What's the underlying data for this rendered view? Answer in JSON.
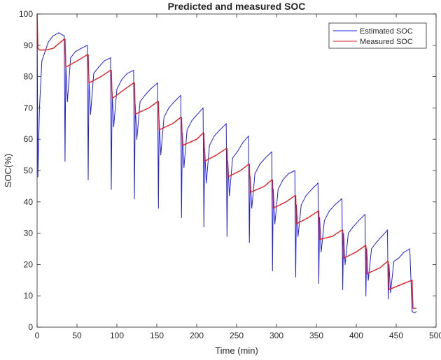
{
  "chart_data": {
    "type": "line",
    "title": "Predicted and measured SOC",
    "xlabel": "Time (min)",
    "ylabel": "SOC(%)",
    "xlim": [
      0,
      500
    ],
    "ylim": [
      0,
      100
    ],
    "xticks": [
      0,
      50,
      100,
      150,
      200,
      250,
      300,
      350,
      400,
      450,
      500
    ],
    "yticks": [
      0,
      10,
      20,
      30,
      40,
      50,
      60,
      70,
      80,
      90,
      100
    ],
    "grid": false,
    "legend_position": "top-right",
    "pulse_start_times": [
      0,
      36,
      65,
      94,
      123,
      153,
      182,
      210,
      239,
      267,
      296,
      325,
      354,
      384,
      413,
      441
    ],
    "series": [
      {
        "name": "Estimated SOC",
        "color": "#1f1fe0",
        "x": [
          0,
          1,
          3,
          6,
          10,
          14,
          20,
          27,
          34,
          35,
          36,
          38,
          42,
          48,
          55,
          63,
          64,
          65,
          67,
          71,
          77,
          84,
          92,
          93,
          94,
          96,
          100,
          106,
          113,
          121,
          122,
          123,
          125,
          129,
          135,
          142,
          151,
          152,
          153,
          155,
          159,
          165,
          172,
          180,
          181,
          182,
          184,
          188,
          194,
          201,
          208,
          209,
          210,
          212,
          216,
          222,
          229,
          237,
          238,
          239,
          241,
          245,
          251,
          258,
          265,
          266,
          267,
          269,
          273,
          279,
          286,
          294,
          295,
          296,
          298,
          302,
          308,
          315,
          323,
          324,
          325,
          327,
          331,
          337,
          344,
          352,
          353,
          354,
          356,
          360,
          366,
          373,
          382,
          383,
          384,
          386,
          390,
          396,
          403,
          411,
          412,
          413,
          415,
          419,
          425,
          432,
          439,
          440,
          441,
          443,
          447,
          453,
          460,
          467,
          470,
          473,
          475
        ],
        "y": [
          100,
          48,
          70,
          85,
          88,
          91,
          93,
          94,
          93,
          53,
          84,
          72,
          86,
          88,
          89,
          90,
          47,
          79,
          68,
          81,
          83,
          85,
          86,
          44,
          75,
          64,
          76,
          79,
          81,
          82,
          41,
          71,
          60,
          72,
          74,
          76,
          78,
          38,
          66,
          55,
          67,
          70,
          72,
          74,
          35,
          62,
          51,
          63,
          66,
          68,
          70,
          32,
          57,
          46,
          58,
          61,
          63,
          65,
          29,
          53,
          42,
          54,
          56,
          59,
          61,
          27,
          48,
          38,
          49,
          52,
          54,
          56,
          18,
          44,
          33,
          44,
          47,
          49,
          50,
          16,
          39,
          29,
          39,
          42,
          44,
          46,
          14,
          35,
          24,
          34,
          37,
          39,
          41,
          12,
          30,
          20,
          30,
          32,
          34,
          36,
          10,
          25,
          15,
          25,
          27,
          29,
          31,
          9,
          20,
          11,
          21,
          22,
          24,
          25,
          5,
          4.5,
          5
        ]
      },
      {
        "name": "Measured SOC",
        "color": "#e01f1f",
        "x": [
          0,
          1,
          3,
          10,
          20,
          34,
          35,
          36,
          50,
          63,
          64,
          65,
          80,
          92,
          93,
          94,
          110,
          121,
          122,
          123,
          140,
          151,
          152,
          153,
          170,
          180,
          181,
          182,
          200,
          208,
          209,
          210,
          225,
          237,
          238,
          239,
          255,
          265,
          266,
          267,
          285,
          294,
          295,
          296,
          312,
          323,
          324,
          325,
          340,
          352,
          353,
          354,
          370,
          382,
          383,
          384,
          400,
          411,
          412,
          413,
          430,
          439,
          440,
          441,
          460,
          470,
          471,
          475
        ],
        "y": [
          100,
          89,
          88.5,
          88.5,
          89,
          92,
          92,
          83,
          85,
          87,
          87,
          78,
          80,
          82,
          82,
          73,
          76,
          78,
          78,
          68,
          70,
          72,
          72,
          63,
          65,
          67,
          67,
          58,
          60,
          62,
          62,
          53,
          55,
          57,
          57,
          48,
          50,
          52,
          52,
          43,
          45,
          47,
          47,
          38,
          40,
          42,
          42,
          33,
          35,
          37,
          37,
          28,
          29,
          31,
          31,
          22,
          24,
          26,
          26,
          17,
          19,
          21,
          21,
          12,
          14,
          15,
          6,
          6
        ]
      }
    ]
  }
}
